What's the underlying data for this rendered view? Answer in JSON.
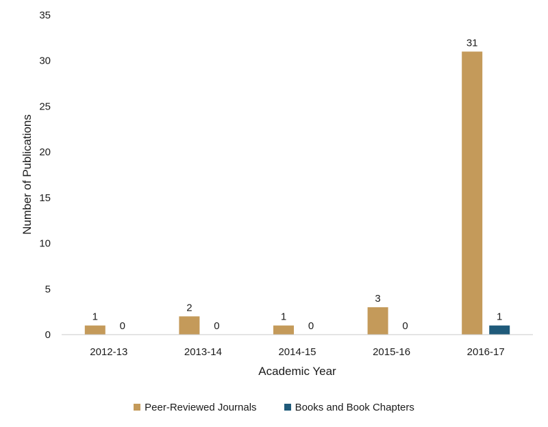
{
  "chart_data": {
    "type": "bar",
    "categories": [
      "2012-13",
      "2013-14",
      "2014-15",
      "2015-16",
      "2016-17"
    ],
    "series": [
      {
        "name": "Peer-Reviewed Journals",
        "values": [
          1,
          2,
          1,
          3,
          31
        ],
        "color": "#C49A5A"
      },
      {
        "name": "Books and Book Chapters",
        "values": [
          0,
          0,
          0,
          0,
          1
        ],
        "color": "#1F5A7A"
      }
    ],
    "xlabel": "Academic Year",
    "ylabel": "Number of Publications",
    "ylim": [
      0,
      35
    ],
    "yticks": [
      0,
      5,
      10,
      15,
      20,
      25,
      30,
      35
    ],
    "grid": false,
    "legend_position": "bottom"
  }
}
